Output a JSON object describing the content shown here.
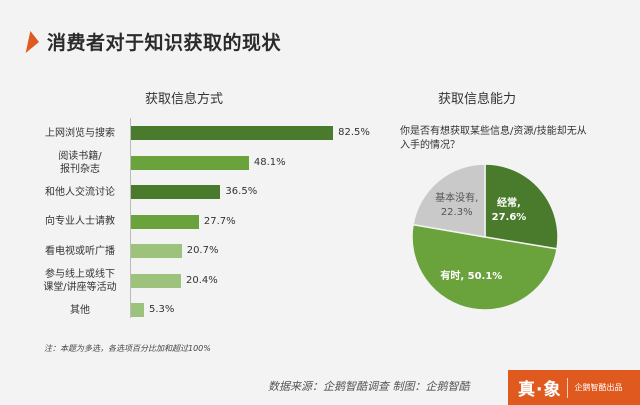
{
  "header": {
    "title": "消费者对于知识获取的现状"
  },
  "colors": {
    "accent": "#e05a1f",
    "dark_green": "#4a7a2c",
    "mid_green": "#6aa33b",
    "light_green": "#9cc27c",
    "grey": "#c9c9c9"
  },
  "chart_data": [
    {
      "type": "bar",
      "orientation": "horizontal",
      "title": "获取信息方式",
      "categories": [
        "上网浏览与搜索",
        "阅读书籍/\n报刊杂志",
        "和他人交流讨论",
        "向专业人士请教",
        "看电视或听广播",
        "参与线上或线下\n课堂/讲座等活动",
        "其他"
      ],
      "values": [
        82.5,
        48.1,
        36.5,
        27.7,
        20.7,
        20.4,
        5.3
      ],
      "value_labels": [
        "82.5%",
        "48.1%",
        "36.5%",
        "27.7%",
        "20.7%",
        "20.4%",
        "5.3%"
      ],
      "bar_colors": [
        "#4a7a2c",
        "#6aa33b",
        "#4a7a2c",
        "#6aa33b",
        "#9cc27c",
        "#9cc27c",
        "#9cc27c"
      ],
      "xlim": [
        0,
        100
      ],
      "note": "注：本题为多选，各选项百分比加和超过100%"
    },
    {
      "type": "pie",
      "title": "获取信息能力",
      "question": "你是否有想获取某些信息/资源/技能却无从入手的情况？",
      "slices": [
        {
          "label": "经常",
          "value": 27.6,
          "display": "27.6%",
          "color": "#4a7a2c"
        },
        {
          "label": "有时",
          "value": 50.1,
          "display": "50.1%",
          "color": "#6aa33b"
        },
        {
          "label": "基本没有",
          "value": 22.3,
          "display": "22.3%",
          "color": "#c9c9c9"
        }
      ]
    }
  ],
  "footer": {
    "source": "数据来源：企鹅智酷调查  制图：企鹅智酷",
    "brand_main": "真·象",
    "brand_sub": "企鹅智酷出品"
  }
}
